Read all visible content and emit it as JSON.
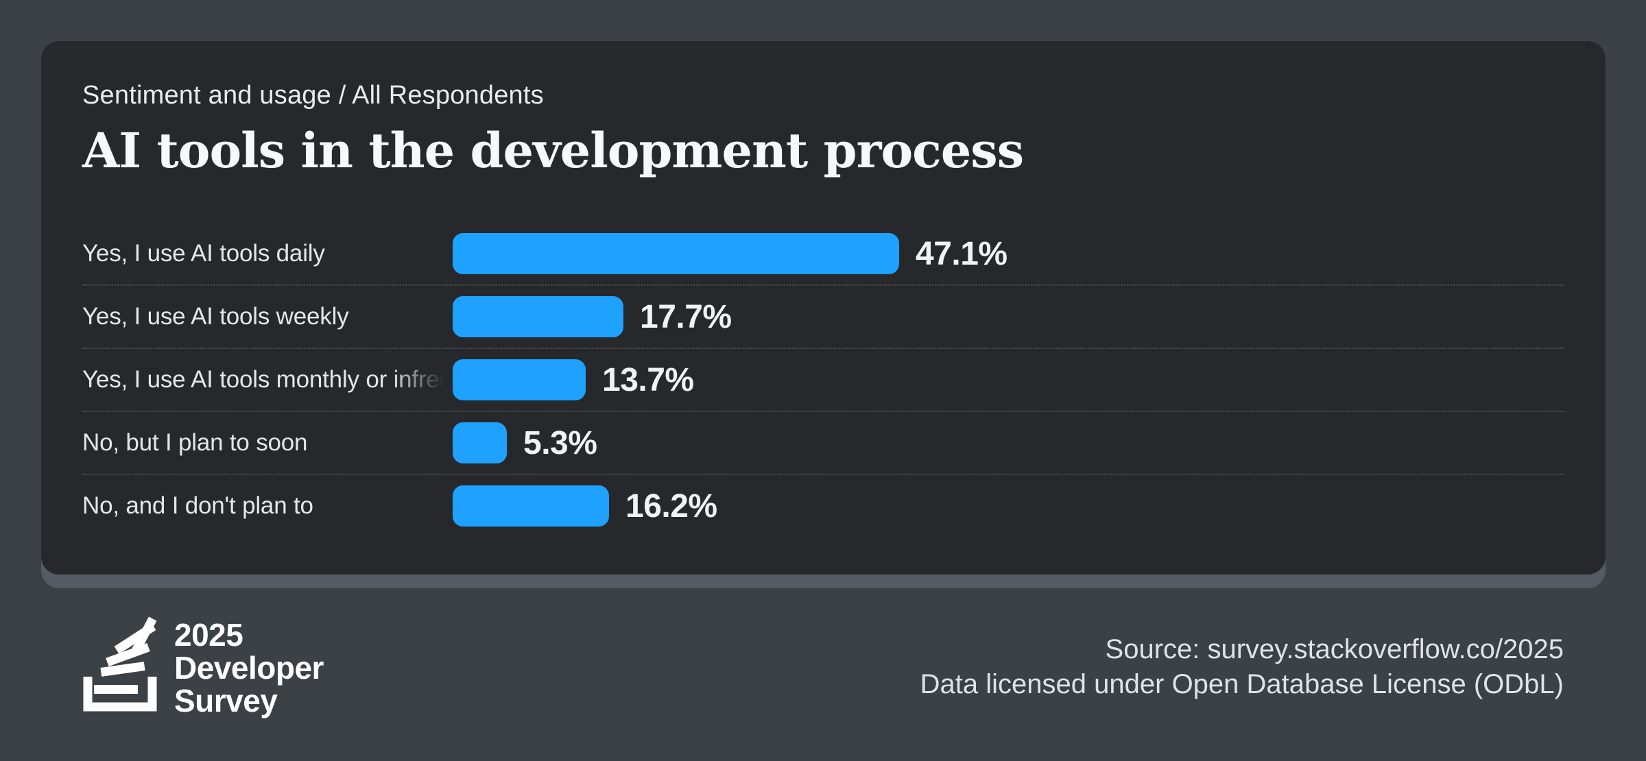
{
  "card": {
    "eyebrow": "Sentiment and usage / All Respondents",
    "title": "AI tools in the development process"
  },
  "chart_data": {
    "type": "bar",
    "orientation": "horizontal",
    "title": "AI tools in the development process",
    "subtitle": "Sentiment and usage / All Respondents",
    "categories": [
      "Yes, I use AI tools daily",
      "Yes, I use AI tools weekly",
      "Yes, I use AI tools monthly or infrequently",
      "No, but I plan to soon",
      "No, and I don't plan to"
    ],
    "values": [
      47.1,
      17.7,
      13.7,
      5.3,
      16.2
    ],
    "value_labels": [
      "47.1%",
      "17.7%",
      "13.7%",
      "5.3%",
      "16.2%"
    ],
    "unit": "%",
    "bar_color": "#1ea1ff",
    "grid": false,
    "legend": false,
    "value_label_position": "end-of-bar",
    "category_label_truncated": [
      false,
      false,
      true,
      false,
      false
    ]
  },
  "footer": {
    "logo": {
      "icon": "stackoverflow-icon",
      "line1": "2025",
      "line2": "Developer",
      "line3": "Survey"
    },
    "source_line1": "Source: survey.stackoverflow.co/2025",
    "source_line2": "Data licensed under Open Database License (ODbL)"
  },
  "colors": {
    "accent_blue": "#1ea1ff",
    "page_background": "#3c4146",
    "card_background": "#26282b",
    "card_shadow": "#555b63",
    "separator": "#4a4e54",
    "text_primary": "#f7f8f9",
    "text_secondary": "#e4e6e8",
    "logo_white": "#ffffff"
  }
}
